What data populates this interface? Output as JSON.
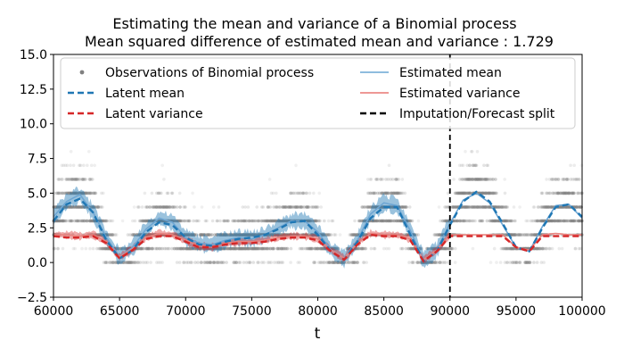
{
  "chart_data": {
    "type": "line",
    "title_line1": "Estimating the mean and variance of a Binomial process",
    "title_line2": "Mean squared difference of estimated mean and variance : 1.729",
    "xlabel": "t",
    "ylabel": "",
    "xlim": [
      60000,
      100000
    ],
    "ylim": [
      -2.5,
      15.0
    ],
    "x_ticks": [
      {
        "value": 60000,
        "label": "60000"
      },
      {
        "value": 65000,
        "label": "65000"
      },
      {
        "value": 70000,
        "label": "70000"
      },
      {
        "value": 75000,
        "label": "75000"
      },
      {
        "value": 80000,
        "label": "80000"
      },
      {
        "value": 85000,
        "label": "85000"
      },
      {
        "value": 90000,
        "label": "90000"
      },
      {
        "value": 95000,
        "label": "95000"
      },
      {
        "value": 100000,
        "label": "100000"
      }
    ],
    "y_ticks": [
      {
        "value": -2.5,
        "label": "−2.5"
      },
      {
        "value": 0.0,
        "label": "0.0"
      },
      {
        "value": 2.5,
        "label": "2.5"
      },
      {
        "value": 5.0,
        "label": "5.0"
      },
      {
        "value": 7.5,
        "label": "7.5"
      },
      {
        "value": 10.0,
        "label": "10.0"
      },
      {
        "value": 12.5,
        "label": "12.5"
      },
      {
        "value": 15.0,
        "label": "15.0"
      }
    ],
    "grid": false,
    "legend_position": "top",
    "split_x": 90000,
    "legend": [
      {
        "label": "Observations of Binomial process",
        "kind": "marker",
        "color": "#808080"
      },
      {
        "label": "Latent mean",
        "kind": "dashed",
        "color": "#1f77b4"
      },
      {
        "label": "Latent  variance",
        "kind": "dashed",
        "color": "#d62728"
      },
      {
        "label": "Estimated mean",
        "kind": "solid",
        "color": "#7fb3d9"
      },
      {
        "label": "Estimated variance",
        "kind": "solid",
        "color": "#ec8a86"
      },
      {
        "label": "Imputation/Forecast split",
        "kind": "dashed",
        "color": "#000000"
      }
    ],
    "series": [
      {
        "role": "latent_mean",
        "x": [
          60000,
          61000,
          62000,
          63000,
          64000,
          65000,
          66000,
          67000,
          68000,
          69000,
          70000,
          71000,
          72000,
          73000,
          74000,
          75000,
          76000,
          77000,
          78000,
          79000,
          80000,
          81000,
          82000,
          83000,
          84000,
          85000,
          86000,
          87000,
          88000,
          89000,
          90000,
          91000,
          92000,
          93000,
          94000,
          95000,
          96000,
          97000,
          98000,
          99000,
          100000
        ],
        "values": [
          3.0,
          4.2,
          4.6,
          3.6,
          1.6,
          0.3,
          0.9,
          2.2,
          2.9,
          2.7,
          1.8,
          1.3,
          1.2,
          1.5,
          1.7,
          1.8,
          2.0,
          2.4,
          2.9,
          3.0,
          2.0,
          0.8,
          0.2,
          1.5,
          3.2,
          4.0,
          4.0,
          2.0,
          0.1,
          0.8,
          2.7,
          4.4,
          5.1,
          4.4,
          2.8,
          1.1,
          0.8,
          2.5,
          4.0,
          4.2,
          3.3
        ]
      },
      {
        "role": "latent_variance",
        "x": [
          60000,
          61000,
          62000,
          63000,
          64000,
          65000,
          66000,
          67000,
          68000,
          69000,
          70000,
          71000,
          72000,
          73000,
          74000,
          75000,
          76000,
          77000,
          78000,
          79000,
          80000,
          81000,
          82000,
          83000,
          84000,
          85000,
          86000,
          87000,
          88000,
          89000,
          90000,
          91000,
          92000,
          93000,
          94000,
          95000,
          96000,
          97000,
          98000,
          99000,
          100000
        ],
        "values": [
          1.9,
          1.8,
          1.8,
          1.9,
          1.4,
          0.3,
          0.9,
          1.7,
          1.9,
          1.9,
          1.5,
          1.1,
          1.1,
          1.3,
          1.4,
          1.4,
          1.5,
          1.7,
          1.8,
          1.8,
          1.6,
          0.8,
          0.2,
          1.3,
          2.0,
          1.9,
          1.9,
          1.6,
          0.1,
          0.8,
          1.9,
          1.9,
          1.9,
          1.9,
          1.9,
          1.1,
          0.8,
          1.9,
          1.9,
          1.9,
          1.9
        ]
      },
      {
        "role": "estimated_mean",
        "x": [
          60000,
          61000,
          62000,
          63000,
          64000,
          65000,
          66000,
          67000,
          68000,
          69000,
          70000,
          71000,
          72000,
          73000,
          74000,
          75000,
          76000,
          77000,
          78000,
          79000,
          80000,
          81000,
          82000,
          83000,
          84000,
          85000,
          86000,
          87000,
          88000,
          89000,
          90000,
          91000,
          92000,
          93000,
          94000,
          95000,
          96000,
          97000,
          98000,
          99000,
          100000
        ],
        "values": [
          3.3,
          4.4,
          4.9,
          3.6,
          1.8,
          0.4,
          1.1,
          2.4,
          3.2,
          2.9,
          1.8,
          1.4,
          1.3,
          1.6,
          1.8,
          1.7,
          2.0,
          2.5,
          3.0,
          3.0,
          2.2,
          0.9,
          0.3,
          1.6,
          3.5,
          4.3,
          4.1,
          2.3,
          0.2,
          0.9,
          2.8,
          4.5,
          5.0,
          4.3,
          2.7,
          1.1,
          0.8,
          2.6,
          4.1,
          4.2,
          3.2
        ]
      },
      {
        "role": "estimated_variance",
        "x": [
          60000,
          61000,
          62000,
          63000,
          64000,
          65000,
          66000,
          67000,
          68000,
          69000,
          70000,
          71000,
          72000,
          73000,
          74000,
          75000,
          76000,
          77000,
          78000,
          79000,
          80000,
          81000,
          82000,
          83000,
          84000,
          85000,
          86000,
          87000,
          88000,
          89000,
          90000,
          91000,
          92000,
          93000,
          94000,
          95000,
          96000,
          97000,
          98000,
          99000,
          100000
        ],
        "values": [
          2.0,
          2.0,
          1.9,
          2.0,
          1.5,
          0.4,
          1.0,
          1.8,
          2.1,
          2.0,
          1.6,
          1.2,
          1.1,
          1.4,
          1.5,
          1.5,
          1.6,
          1.8,
          1.9,
          1.9,
          1.7,
          0.9,
          0.3,
          1.4,
          2.1,
          2.0,
          2.0,
          1.7,
          0.2,
          0.9,
          2.0,
          2.0,
          2.0,
          2.0,
          2.0,
          1.1,
          0.9,
          2.0,
          2.1,
          2.0,
          2.0
        ]
      }
    ],
    "observation_levels": [
      0,
      1,
      2,
      3,
      4,
      5,
      6,
      7,
      8
    ]
  }
}
